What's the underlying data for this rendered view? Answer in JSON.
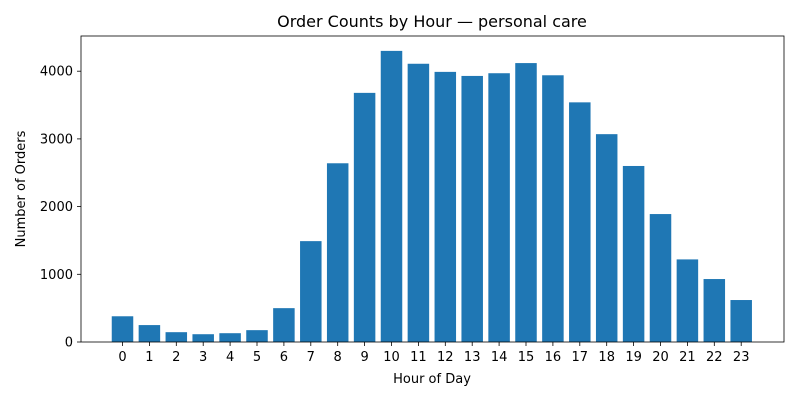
{
  "chart_data": {
    "type": "bar",
    "title": "Order Counts by Hour — personal care",
    "xlabel": "Hour of Day",
    "ylabel": "Number of Orders",
    "categories": [
      "0",
      "1",
      "2",
      "3",
      "4",
      "5",
      "6",
      "7",
      "8",
      "9",
      "10",
      "11",
      "12",
      "13",
      "14",
      "15",
      "16",
      "17",
      "18",
      "19",
      "20",
      "21",
      "22",
      "23"
    ],
    "values": [
      380,
      250,
      145,
      115,
      130,
      175,
      500,
      1490,
      2640,
      3680,
      4300,
      4110,
      3990,
      3930,
      3970,
      4120,
      3940,
      3540,
      3070,
      2600,
      1890,
      1220,
      930,
      620
    ],
    "ylim": [
      0,
      4520
    ],
    "yticks": [
      0,
      1000,
      2000,
      3000,
      4000
    ],
    "bar_color": "#1f77b4",
    "grid": false,
    "legend": false
  }
}
